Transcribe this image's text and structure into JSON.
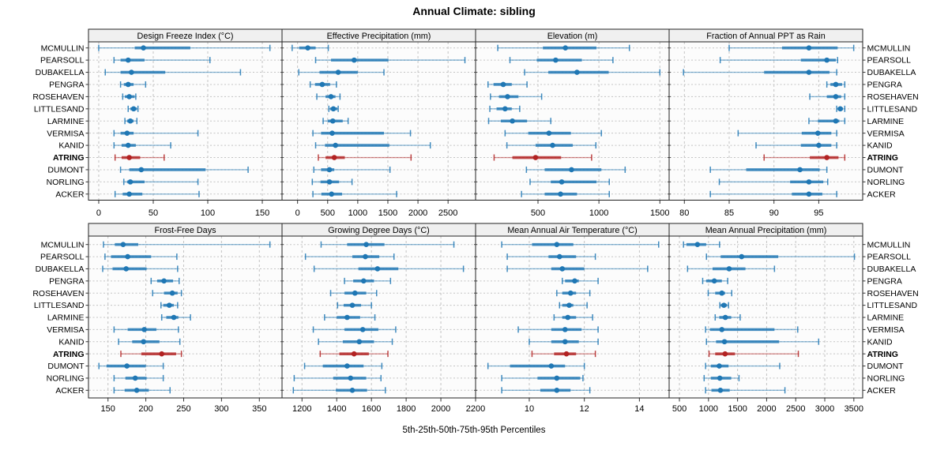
{
  "title": "Annual Climate: sibling",
  "caption": "5th-25th-50th-75th-95th Percentiles",
  "colors": {
    "series": "#1F77B4",
    "highlight": "#B22222",
    "strip_bg": "#F0F0F0",
    "panel_bg": "#FCFCFC",
    "grid": "#C3C3C3",
    "border": "#222222",
    "text": "#000000"
  },
  "chart_data": {
    "type": "dotplot-percentile-trellis",
    "percentiles": [
      5,
      25,
      50,
      75,
      95
    ],
    "legend_note": "5th-25th-50th-75th-95th Percentiles",
    "stations": [
      "MCMULLIN",
      "PEARSOLL",
      "DUBAKELLA",
      "PENGRA",
      "ROSEHAVEN",
      "LITTLESAND",
      "LARMINE",
      "VERMISA",
      "KANID",
      "ATRING",
      "DUMONT",
      "NORLING",
      "ACKER"
    ],
    "highlight_station": "ATRING",
    "panels": [
      {
        "title": "Design Freeze Index (°C)",
        "ticks": [
          0,
          50,
          100,
          150
        ],
        "xlim": [
          -9.4,
          168.1
        ],
        "values": [
          [
            0,
            33,
            41,
            84,
            157
          ],
          [
            14,
            20,
            27,
            42,
            102
          ],
          [
            6,
            20,
            30,
            61,
            130
          ],
          [
            20,
            23,
            27,
            32,
            43
          ],
          [
            22,
            24,
            28,
            33,
            34
          ],
          [
            27,
            29,
            32,
            35,
            36
          ],
          [
            24,
            26,
            29,
            32,
            35
          ],
          [
            14,
            20,
            26,
            32,
            91
          ],
          [
            14,
            21,
            27,
            34,
            66
          ],
          [
            15,
            21,
            28,
            38,
            60
          ],
          [
            20,
            28,
            39,
            98,
            137
          ],
          [
            23,
            26,
            29,
            42,
            91
          ],
          [
            15,
            22,
            28,
            40,
            92
          ]
        ]
      },
      {
        "title": "Effective Precipitation (mm)",
        "ticks": [
          0,
          500,
          1000,
          1500,
          2000,
          2500
        ],
        "xlim": [
          -258,
          2957
        ],
        "values": [
          [
            -90,
            25,
            170,
            300,
            510
          ],
          [
            300,
            555,
            940,
            1510,
            2780
          ],
          [
            20,
            365,
            675,
            1000,
            1435
          ],
          [
            210,
            290,
            410,
            540,
            645
          ],
          [
            320,
            465,
            555,
            630,
            705
          ],
          [
            520,
            540,
            595,
            660,
            675
          ],
          [
            425,
            500,
            585,
            750,
            840
          ],
          [
            255,
            390,
            575,
            1435,
            1875
          ],
          [
            300,
            455,
            630,
            1525,
            2205
          ],
          [
            345,
            465,
            610,
            785,
            1885
          ],
          [
            270,
            390,
            530,
            610,
            1535
          ],
          [
            245,
            380,
            530,
            690,
            905
          ],
          [
            255,
            395,
            565,
            740,
            1645
          ]
        ]
      },
      {
        "title": "Elevation (m)",
        "ticks": [
          500,
          1000,
          1500
        ],
        "xlim": [
          -12,
          1576
        ],
        "values": [
          [
            170,
            540,
            725,
            980,
            1250
          ],
          [
            270,
            490,
            645,
            860,
            1115
          ],
          [
            390,
            585,
            820,
            1080,
            1500
          ],
          [
            90,
            135,
            215,
            285,
            410
          ],
          [
            110,
            180,
            250,
            340,
            530
          ],
          [
            105,
            160,
            230,
            285,
            350
          ],
          [
            95,
            195,
            290,
            410,
            605
          ],
          [
            230,
            420,
            590,
            770,
            1020
          ],
          [
            245,
            480,
            620,
            785,
            975
          ],
          [
            140,
            290,
            480,
            690,
            940
          ],
          [
            405,
            555,
            775,
            1020,
            1215
          ],
          [
            435,
            605,
            695,
            980,
            1085
          ],
          [
            365,
            555,
            685,
            820,
            1085
          ]
        ]
      },
      {
        "title": "Fraction of Annual PPT as Rain",
        "ticks": [
          80,
          85,
          90,
          95
        ],
        "xlim": [
          78.3,
          99.9
        ],
        "values": [
          [
            85.0,
            90.9,
            93.9,
            97.1,
            98.9
          ],
          [
            84.0,
            93.0,
            95.9,
            96.9,
            97.1
          ],
          [
            79.9,
            88.9,
            93.9,
            96.2,
            97.0
          ],
          [
            95.9,
            96.3,
            96.9,
            97.6,
            97.9
          ],
          [
            94.0,
            95.9,
            96.9,
            97.5,
            97.9
          ],
          [
            97.0,
            97.1,
            97.4,
            97.7,
            97.9
          ],
          [
            93.9,
            94.9,
            96.9,
            97.3,
            97.9
          ],
          [
            86.0,
            93.1,
            94.9,
            96.4,
            97.0
          ],
          [
            88.0,
            93.0,
            95.0,
            96.4,
            97.0
          ],
          [
            88.9,
            94.0,
            95.9,
            97.2,
            97.9
          ],
          [
            82.9,
            86.9,
            92.9,
            95.1,
            95.9
          ],
          [
            83.9,
            91.8,
            93.9,
            95.5,
            96.0
          ],
          [
            82.9,
            92.0,
            93.9,
            95.4,
            97.0
          ]
        ]
      },
      {
        "title": "Frost-Free Days",
        "ticks": [
          150,
          200,
          250,
          300,
          350
        ],
        "xlim": [
          124.2,
          380
        ],
        "values": [
          [
            144,
            159,
            170,
            190,
            364
          ],
          [
            146,
            154,
            176,
            207,
            241
          ],
          [
            143,
            156,
            174,
            201,
            242
          ],
          [
            207,
            215,
            224,
            236,
            244
          ],
          [
            209,
            224,
            235,
            242,
            247
          ],
          [
            220,
            223,
            231,
            237,
            242
          ],
          [
            221,
            227,
            237,
            243,
            259
          ],
          [
            158,
            176,
            198,
            214,
            243
          ],
          [
            164,
            182,
            197,
            218,
            245
          ],
          [
            167,
            194,
            221,
            240,
            247
          ],
          [
            138,
            148,
            175,
            200,
            223
          ],
          [
            158,
            173,
            186,
            201,
            223
          ],
          [
            158,
            172,
            188,
            204,
            232
          ]
        ]
      },
      {
        "title": "Growing Degree Days (°C)",
        "ticks": [
          1200,
          1400,
          1600,
          1800,
          2000,
          2200
        ],
        "xlim": [
          1085,
          2200
        ],
        "values": [
          [
            1310,
            1460,
            1570,
            1675,
            2075
          ],
          [
            1220,
            1490,
            1565,
            1645,
            1730
          ],
          [
            1270,
            1525,
            1635,
            1755,
            2130
          ],
          [
            1445,
            1495,
            1555,
            1615,
            1710
          ],
          [
            1365,
            1445,
            1505,
            1570,
            1630
          ],
          [
            1405,
            1440,
            1490,
            1540,
            1600
          ],
          [
            1330,
            1400,
            1460,
            1535,
            1620
          ],
          [
            1265,
            1445,
            1550,
            1640,
            1740
          ],
          [
            1295,
            1435,
            1530,
            1615,
            1720
          ],
          [
            1305,
            1415,
            1500,
            1585,
            1695
          ],
          [
            1215,
            1320,
            1460,
            1555,
            1660
          ],
          [
            1155,
            1380,
            1480,
            1570,
            1655
          ],
          [
            1150,
            1395,
            1490,
            1575,
            1680
          ]
        ]
      },
      {
        "title": "Mean Annual Air Temperature (°C)",
        "ticks": [
          10,
          12,
          14
        ],
        "xlim": [
          8.05,
          15.08
        ],
        "values": [
          [
            9.0,
            10.1,
            11.0,
            11.6,
            14.7
          ],
          [
            9.2,
            10.7,
            11.1,
            11.7,
            12.4
          ],
          [
            9.2,
            10.8,
            11.2,
            12.0,
            14.3
          ],
          [
            11.2,
            11.3,
            11.65,
            11.8,
            12.5
          ],
          [
            11.0,
            11.2,
            11.5,
            11.7,
            12.2
          ],
          [
            11.1,
            11.2,
            11.45,
            11.6,
            12.1
          ],
          [
            10.9,
            11.2,
            11.4,
            11.7,
            12.3
          ],
          [
            9.6,
            10.8,
            11.3,
            11.9,
            12.5
          ],
          [
            10.0,
            10.8,
            11.3,
            11.8,
            12.5
          ],
          [
            10.1,
            10.9,
            11.35,
            11.7,
            12.4
          ],
          [
            8.5,
            9.3,
            10.8,
            11.3,
            12.0
          ],
          [
            9.0,
            10.3,
            11.0,
            11.85,
            11.95
          ],
          [
            9.0,
            10.4,
            11.0,
            11.5,
            12.2
          ]
        ]
      },
      {
        "title": "Mean Annual Precipitation (mm)",
        "ticks": [
          500,
          1000,
          1500,
          2000,
          2500,
          3000,
          3500
        ],
        "xlim": [
          323,
          3652
        ],
        "values": [
          [
            570,
            620,
            810,
            960,
            1190
          ],
          [
            965,
            1210,
            1570,
            2200,
            3510
          ],
          [
            640,
            1070,
            1355,
            1635,
            2135
          ],
          [
            900,
            960,
            1100,
            1230,
            1330
          ],
          [
            995,
            1115,
            1230,
            1285,
            1400
          ],
          [
            1195,
            1210,
            1265,
            1320,
            1345
          ],
          [
            1115,
            1185,
            1290,
            1390,
            1545
          ],
          [
            950,
            1025,
            1230,
            2135,
            2535
          ],
          [
            965,
            1130,
            1275,
            2215,
            2895
          ],
          [
            1010,
            1115,
            1285,
            1455,
            2545
          ],
          [
            950,
            1040,
            1185,
            1345,
            2225
          ],
          [
            925,
            1040,
            1195,
            1390,
            1525
          ],
          [
            950,
            1050,
            1205,
            1365,
            2315
          ]
        ]
      }
    ]
  }
}
